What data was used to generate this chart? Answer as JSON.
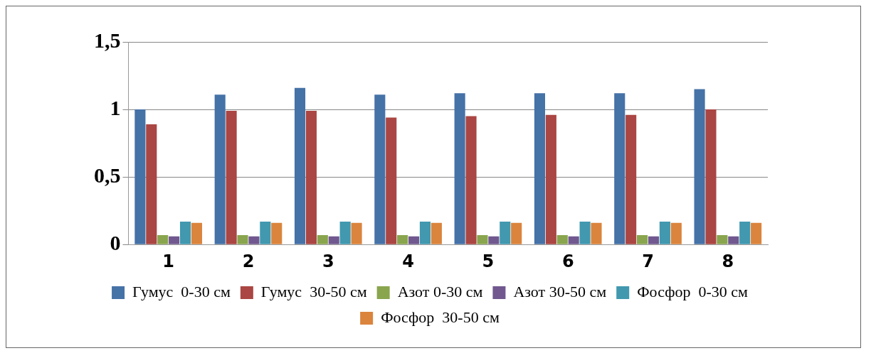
{
  "chart_data": {
    "type": "bar",
    "categories": [
      "1",
      "2",
      "3",
      "4",
      "5",
      "6",
      "7",
      "8"
    ],
    "series": [
      {
        "name": "Гумус  0-30 см",
        "color": "#4572a7",
        "values": [
          1.0,
          1.11,
          1.16,
          1.11,
          1.12,
          1.12,
          1.12,
          1.15
        ]
      },
      {
        "name": "Гумус  30-50 см",
        "color": "#aa4643",
        "values": [
          0.89,
          0.99,
          0.99,
          0.94,
          0.95,
          0.96,
          0.96,
          1.0
        ]
      },
      {
        "name": "Азот 0-30 см",
        "color": "#89a54e",
        "values": [
          0.07,
          0.07,
          0.07,
          0.07,
          0.07,
          0.07,
          0.07,
          0.07
        ]
      },
      {
        "name": "Азот 30-50 см",
        "color": "#71588f",
        "values": [
          0.06,
          0.06,
          0.06,
          0.06,
          0.06,
          0.06,
          0.06,
          0.06
        ]
      },
      {
        "name": "Фосфор  0-30 см",
        "color": "#4198af",
        "values": [
          0.17,
          0.17,
          0.17,
          0.17,
          0.17,
          0.17,
          0.17,
          0.17
        ]
      },
      {
        "name": "Фосфор  30-50 см",
        "color": "#db843d",
        "values": [
          0.16,
          0.16,
          0.16,
          0.16,
          0.16,
          0.16,
          0.16,
          0.16
        ]
      }
    ],
    "ylim": [
      0,
      1.5
    ],
    "yticks": [
      {
        "value": 0,
        "label": "0"
      },
      {
        "value": 0.5,
        "label": "0,5"
      },
      {
        "value": 1,
        "label": "1"
      },
      {
        "value": 1.5,
        "label": "1,5"
      }
    ],
    "grid": "y",
    "legend": "bottom"
  }
}
